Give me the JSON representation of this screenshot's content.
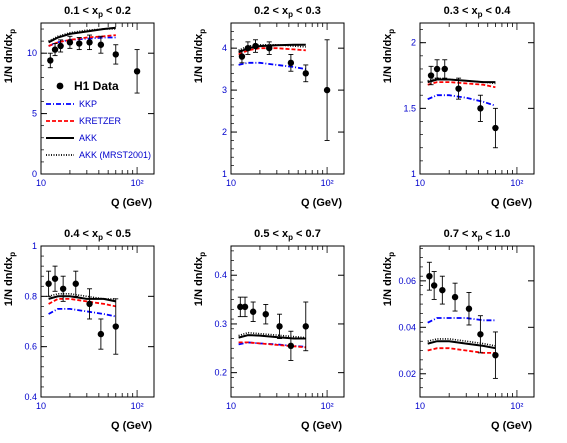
{
  "figure": {
    "legend": {
      "data_label": "H1 Data",
      "entries": [
        {
          "name": "KKP",
          "color": "#0000ff",
          "dash": "dashdot"
        },
        {
          "name": "KRETZER",
          "color": "#ff0000",
          "dash": "dashed"
        },
        {
          "name": "AKK",
          "color": "#000000",
          "dash": "solid"
        },
        {
          "name": "AKK (MRST2001)",
          "color": "#000000",
          "dash": "dotted"
        }
      ]
    }
  },
  "chart_data": [
    {
      "type": "scatter",
      "title": "0.1 < x_p < 0.2",
      "title_main": "0.1 < x",
      "title_sub": "p",
      "title_tail": " < 0.2",
      "xlabel": "Q (GeV)",
      "ylabel": "1/N dn/dx_p",
      "xscale": "log",
      "xlim": [
        10,
        150
      ],
      "ylim": [
        0,
        12.5
      ],
      "xticks": [
        "10",
        "10²"
      ],
      "yticks": [
        0,
        5,
        10
      ],
      "data": {
        "x": [
          12.5,
          14,
          16,
          20,
          25,
          32,
          42,
          60,
          100
        ],
        "y": [
          9.4,
          10.3,
          10.6,
          10.9,
          10.8,
          10.9,
          10.7,
          9.9,
          8.5
        ],
        "yerr": [
          0.6,
          0.5,
          0.5,
          0.5,
          0.5,
          0.6,
          0.7,
          0.8,
          1.8
        ]
      },
      "series": [
        {
          "name": "KKP",
          "x": [
            12,
            15,
            20,
            30,
            45,
            60
          ],
          "y": [
            10.6,
            10.9,
            11.1,
            11.2,
            11.3,
            11.3
          ]
        },
        {
          "name": "KRETZER",
          "x": [
            12,
            15,
            20,
            30,
            45,
            60
          ],
          "y": [
            10.6,
            10.9,
            11.1,
            11.3,
            11.4,
            11.5
          ]
        },
        {
          "name": "AKK",
          "x": [
            12,
            15,
            20,
            30,
            45,
            60
          ],
          "y": [
            10.9,
            11.3,
            11.6,
            11.8,
            12.0,
            12.1
          ]
        },
        {
          "name": "AKK (MRST2001)",
          "x": [
            12,
            15,
            20,
            30,
            45,
            60
          ],
          "y": [
            11.0,
            11.4,
            11.7,
            11.9,
            12.0,
            12.0
          ]
        }
      ]
    },
    {
      "type": "scatter",
      "title": "0.2 < x_p < 0.3",
      "title_main": "0.2 < x",
      "title_sub": "p",
      "title_tail": " < 0.3",
      "xlabel": "Q (GeV)",
      "ylabel": "1/N dn/dx_p",
      "xscale": "log",
      "xlim": [
        10,
        150
      ],
      "ylim": [
        1,
        4.6
      ],
      "xticks": [
        "10",
        "10²"
      ],
      "yticks": [
        1,
        2,
        3,
        4
      ],
      "data": {
        "x": [
          13,
          15,
          18,
          25,
          42,
          60,
          100
        ],
        "y": [
          3.8,
          4.0,
          4.05,
          4.0,
          3.65,
          3.4,
          3.0
        ],
        "yerr": [
          0.15,
          0.15,
          0.15,
          0.15,
          0.2,
          0.2,
          1.2
        ]
      },
      "series": [
        {
          "name": "KKP",
          "x": [
            12,
            15,
            20,
            30,
            45,
            60
          ],
          "y": [
            3.6,
            3.65,
            3.65,
            3.6,
            3.55,
            3.5
          ]
        },
        {
          "name": "KRETZER",
          "x": [
            12,
            15,
            20,
            30,
            45,
            60
          ],
          "y": [
            3.85,
            3.95,
            4.0,
            4.0,
            3.97,
            3.95
          ]
        },
        {
          "name": "AKK",
          "x": [
            12,
            15,
            20,
            30,
            45,
            60
          ],
          "y": [
            3.9,
            4.0,
            4.05,
            4.07,
            4.08,
            4.08
          ]
        },
        {
          "name": "AKK (MRST2001)",
          "x": [
            12,
            15,
            20,
            30,
            45,
            60
          ],
          "y": [
            3.95,
            4.05,
            4.08,
            4.08,
            4.05,
            4.03
          ]
        }
      ]
    },
    {
      "type": "scatter",
      "title": "0.3 < x_p < 0.4",
      "title_main": "0.3 < x",
      "title_sub": "p",
      "title_tail": " < 0.4",
      "xlabel": "Q (GeV)",
      "ylabel": "1/N dn/dx_p",
      "xscale": "log",
      "xlim": [
        10,
        150
      ],
      "ylim": [
        1,
        2.15
      ],
      "xticks": [
        "10",
        "10²"
      ],
      "yticks": [
        1,
        1.5,
        2
      ],
      "data": {
        "x": [
          13,
          15,
          18,
          25,
          42,
          60
        ],
        "y": [
          1.75,
          1.8,
          1.8,
          1.65,
          1.5,
          1.35
        ],
        "yerr": [
          0.07,
          0.07,
          0.07,
          0.08,
          0.1,
          0.15
        ]
      },
      "series": [
        {
          "name": "KKP",
          "x": [
            12,
            15,
            20,
            30,
            45,
            60
          ],
          "y": [
            1.57,
            1.6,
            1.6,
            1.58,
            1.55,
            1.52
          ]
        },
        {
          "name": "KRETZER",
          "x": [
            12,
            15,
            20,
            30,
            45,
            60
          ],
          "y": [
            1.68,
            1.7,
            1.7,
            1.69,
            1.68,
            1.66
          ]
        },
        {
          "name": "AKK",
          "x": [
            12,
            15,
            20,
            30,
            45,
            60
          ],
          "y": [
            1.7,
            1.72,
            1.72,
            1.71,
            1.7,
            1.7
          ]
        },
        {
          "name": "AKK (MRST2001)",
          "x": [
            12,
            15,
            20,
            30,
            45,
            60
          ],
          "y": [
            1.71,
            1.73,
            1.72,
            1.71,
            1.7,
            1.69
          ]
        }
      ]
    },
    {
      "type": "scatter",
      "title": "0.4 < x_p < 0.5",
      "title_main": "0.4 < x",
      "title_sub": "p",
      "title_tail": " < 0.5",
      "xlabel": "Q (GeV)",
      "ylabel": "1/N dn/dx_p",
      "xscale": "log",
      "xlim": [
        10,
        150
      ],
      "ylim": [
        0.4,
        1.0
      ],
      "xticks": [
        "10",
        "10²"
      ],
      "yticks": [
        0.4,
        0.6,
        0.8,
        1
      ],
      "data": {
        "x": [
          12,
          14,
          17,
          23,
          32,
          42,
          60
        ],
        "y": [
          0.85,
          0.87,
          0.83,
          0.85,
          0.77,
          0.65,
          0.68
        ],
        "yerr": [
          0.05,
          0.05,
          0.05,
          0.05,
          0.06,
          0.06,
          0.11
        ]
      },
      "series": [
        {
          "name": "KKP",
          "x": [
            12,
            15,
            20,
            30,
            45,
            60
          ],
          "y": [
            0.73,
            0.75,
            0.75,
            0.74,
            0.73,
            0.72
          ]
        },
        {
          "name": "KRETZER",
          "x": [
            12,
            15,
            20,
            30,
            45,
            60
          ],
          "y": [
            0.77,
            0.79,
            0.79,
            0.78,
            0.77,
            0.76
          ]
        },
        {
          "name": "AKK",
          "x": [
            12,
            15,
            20,
            30,
            45,
            60
          ],
          "y": [
            0.79,
            0.8,
            0.8,
            0.79,
            0.79,
            0.78
          ]
        },
        {
          "name": "AKK (MRST2001)",
          "x": [
            12,
            15,
            20,
            30,
            45,
            60
          ],
          "y": [
            0.8,
            0.81,
            0.81,
            0.8,
            0.79,
            0.79
          ]
        }
      ]
    },
    {
      "type": "scatter",
      "title": "0.5 < x_p < 0.7",
      "title_main": "0.5 < x",
      "title_sub": "p",
      "title_tail": " < 0.7",
      "xlabel": "Q (GeV)",
      "ylabel": "1/N dn/dx_p",
      "xscale": "log",
      "xlim": [
        10,
        150
      ],
      "ylim": [
        0.15,
        0.46
      ],
      "xticks": [
        "10",
        "10²"
      ],
      "yticks": [
        0.2,
        0.3,
        0.4
      ],
      "data": {
        "x": [
          12.5,
          14,
          17,
          23,
          32,
          42,
          60
        ],
        "y": [
          0.335,
          0.335,
          0.325,
          0.32,
          0.295,
          0.255,
          0.295
        ],
        "yerr": [
          0.02,
          0.02,
          0.02,
          0.02,
          0.025,
          0.03,
          0.05
        ]
      },
      "series": [
        {
          "name": "KKP",
          "x": [
            12,
            15,
            20,
            30,
            45,
            60
          ],
          "y": [
            0.258,
            0.262,
            0.26,
            0.258,
            0.255,
            0.253
          ]
        },
        {
          "name": "KRETZER",
          "x": [
            12,
            15,
            20,
            30,
            45,
            60
          ],
          "y": [
            0.262,
            0.262,
            0.26,
            0.257,
            0.254,
            0.252
          ]
        },
        {
          "name": "AKK",
          "x": [
            12,
            15,
            20,
            30,
            45,
            60
          ],
          "y": [
            0.272,
            0.277,
            0.276,
            0.273,
            0.27,
            0.27
          ]
        },
        {
          "name": "AKK (MRST2001)",
          "x": [
            12,
            15,
            20,
            30,
            45,
            60
          ],
          "y": [
            0.276,
            0.282,
            0.28,
            0.277,
            0.274,
            0.272
          ]
        }
      ]
    },
    {
      "type": "scatter",
      "title": "0.7 < x_p < 1.0",
      "title_main": "0.7 < x",
      "title_sub": "p",
      "title_tail": " < 1.0",
      "xlabel": "Q (GeV)",
      "ylabel": "1/N dn/dx_p",
      "xscale": "log",
      "xlim": [
        10,
        150
      ],
      "ylim": [
        0.01,
        0.075
      ],
      "xticks": [
        "10",
        "10²"
      ],
      "yticks": [
        0.02,
        0.04,
        0.06
      ],
      "data": {
        "x": [
          12.5,
          14,
          17,
          23,
          32,
          42,
          60
        ],
        "y": [
          0.062,
          0.058,
          0.056,
          0.053,
          0.048,
          0.037,
          0.028
        ],
        "yerr": [
          0.006,
          0.006,
          0.006,
          0.006,
          0.007,
          0.008,
          0.01
        ]
      },
      "series": [
        {
          "name": "KKP",
          "x": [
            12,
            15,
            20,
            30,
            45,
            60
          ],
          "y": [
            0.042,
            0.044,
            0.044,
            0.044,
            0.043,
            0.043
          ]
        },
        {
          "name": "KRETZER",
          "x": [
            12,
            15,
            20,
            30,
            45,
            60
          ],
          "y": [
            0.03,
            0.031,
            0.031,
            0.03,
            0.029,
            0.029
          ]
        },
        {
          "name": "AKK",
          "x": [
            12,
            15,
            20,
            30,
            45,
            60
          ],
          "y": [
            0.033,
            0.034,
            0.034,
            0.033,
            0.032,
            0.031
          ]
        },
        {
          "name": "AKK (MRST2001)",
          "x": [
            12,
            15,
            20,
            30,
            45,
            60
          ],
          "y": [
            0.034,
            0.035,
            0.035,
            0.034,
            0.033,
            0.032
          ]
        }
      ]
    }
  ]
}
